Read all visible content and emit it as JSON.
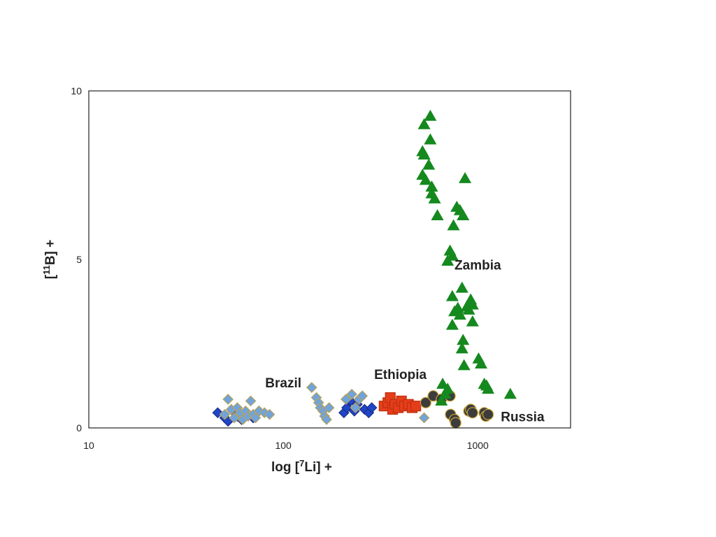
{
  "chart_data": {
    "type": "scatter",
    "title": "",
    "xlabel_parts": [
      "log [",
      "7",
      "Li] +"
    ],
    "ylabel_parts": [
      "[",
      "11",
      "B] +"
    ],
    "x_scale": "log",
    "xlim": [
      10,
      3000
    ],
    "ylim": [
      0,
      10
    ],
    "x_ticks": [
      10,
      100,
      1000
    ],
    "x_tick_labels": [
      "10",
      "100",
      "1000"
    ],
    "y_ticks": [
      0,
      5,
      10
    ],
    "y_tick_labels": [
      "0",
      "5",
      "10"
    ],
    "grid": false,
    "legend": "none",
    "series": [
      {
        "marker": "diamond",
        "color": "#2145c8",
        "stroke": "#1a2f88",
        "points": [
          [
            46,
            0.45
          ],
          [
            50,
            0.3
          ],
          [
            52,
            0.2
          ],
          [
            55,
            0.5
          ],
          [
            58,
            0.35
          ],
          [
            61,
            0.25
          ],
          [
            65,
            0.4
          ],
          [
            70,
            0.3
          ],
          [
            75,
            0.5
          ],
          [
            205,
            0.45
          ],
          [
            212,
            0.6
          ],
          [
            222,
            0.8
          ],
          [
            232,
            0.5
          ],
          [
            240,
            0.7
          ],
          [
            250,
            0.9
          ],
          [
            262,
            0.55
          ],
          [
            275,
            0.45
          ],
          [
            285,
            0.6
          ]
        ]
      },
      {
        "marker": "diamond",
        "color": "#6fa4dc",
        "stroke": "#b8a15a",
        "points": [
          [
            50,
            0.4
          ],
          [
            52,
            0.85
          ],
          [
            54,
            0.55
          ],
          [
            56,
            0.3
          ],
          [
            58,
            0.6
          ],
          [
            60,
            0.45
          ],
          [
            62,
            0.25
          ],
          [
            64,
            0.5
          ],
          [
            66,
            0.35
          ],
          [
            68,
            0.8
          ],
          [
            70,
            0.4
          ],
          [
            72,
            0.3
          ],
          [
            75,
            0.5
          ],
          [
            80,
            0.45
          ],
          [
            85,
            0.4
          ],
          [
            140,
            1.2
          ],
          [
            148,
            0.9
          ],
          [
            152,
            0.75
          ],
          [
            155,
            0.6
          ],
          [
            160,
            0.5
          ],
          [
            163,
            0.35
          ],
          [
            167,
            0.25
          ],
          [
            172,
            0.6
          ],
          [
            210,
            0.85
          ],
          [
            225,
            1.0
          ],
          [
            235,
            0.6
          ],
          [
            245,
            0.85
          ],
          [
            255,
            0.95
          ],
          [
            530,
            0.3
          ]
        ]
      },
      {
        "marker": "square",
        "color": "#e53d1a",
        "stroke": "#c0300f",
        "points": [
          [
            330,
            0.65
          ],
          [
            345,
            0.75
          ],
          [
            355,
            0.9
          ],
          [
            365,
            0.55
          ],
          [
            375,
            0.7
          ],
          [
            390,
            0.6
          ],
          [
            405,
            0.8
          ],
          [
            420,
            0.65
          ],
          [
            440,
            0.7
          ],
          [
            460,
            0.6
          ],
          [
            480,
            0.65
          ]
        ]
      },
      {
        "marker": "circle",
        "color": "#3c3c3c",
        "stroke": "#c9a43a",
        "points": [
          [
            540,
            0.75
          ],
          [
            590,
            0.95
          ],
          [
            650,
            0.85
          ],
          [
            720,
            0.95
          ],
          [
            725,
            0.4
          ],
          [
            760,
            0.25
          ],
          [
            770,
            0.15
          ],
          [
            900,
            0.5
          ],
          [
            920,
            0.55
          ],
          [
            940,
            0.45
          ],
          [
            1080,
            0.45
          ],
          [
            1100,
            0.35
          ],
          [
            1130,
            0.4
          ]
        ]
      },
      {
        "marker": "triangle",
        "color": "#15891e",
        "stroke": "#15891e",
        "points": [
          [
            530,
            9.0
          ],
          [
            570,
            9.25
          ],
          [
            520,
            8.2
          ],
          [
            530,
            8.1
          ],
          [
            570,
            8.55
          ],
          [
            560,
            7.8
          ],
          [
            520,
            7.5
          ],
          [
            540,
            7.35
          ],
          [
            580,
            7.15
          ],
          [
            580,
            6.95
          ],
          [
            600,
            6.8
          ],
          [
            620,
            6.3
          ],
          [
            860,
            7.4
          ],
          [
            780,
            6.55
          ],
          [
            810,
            6.45
          ],
          [
            840,
            6.3
          ],
          [
            750,
            6.0
          ],
          [
            720,
            5.25
          ],
          [
            740,
            5.1
          ],
          [
            700,
            4.95
          ],
          [
            830,
            4.15
          ],
          [
            740,
            3.9
          ],
          [
            920,
            3.8
          ],
          [
            790,
            3.55
          ],
          [
            760,
            3.45
          ],
          [
            810,
            3.35
          ],
          [
            880,
            3.6
          ],
          [
            940,
            3.65
          ],
          [
            900,
            3.5
          ],
          [
            940,
            3.15
          ],
          [
            740,
            3.05
          ],
          [
            840,
            2.6
          ],
          [
            830,
            2.35
          ],
          [
            850,
            1.85
          ],
          [
            1010,
            2.05
          ],
          [
            1040,
            1.9
          ],
          [
            660,
            1.3
          ],
          [
            1080,
            1.3
          ],
          [
            1110,
            1.25
          ],
          [
            1130,
            1.15
          ],
          [
            700,
            1.15
          ],
          [
            680,
            1.0
          ],
          [
            1470,
            1.0
          ],
          [
            650,
            0.8
          ]
        ]
      }
    ],
    "annotations": [
      {
        "text": "Brazil",
        "x": 100,
        "y": 1.2
      },
      {
        "text": "Ethiopia",
        "x": 400,
        "y": 1.45
      },
      {
        "text": "Zambia",
        "x": 1000,
        "y": 4.7
      },
      {
        "text": "Russia",
        "x": 1700,
        "y": 0.2
      }
    ]
  }
}
